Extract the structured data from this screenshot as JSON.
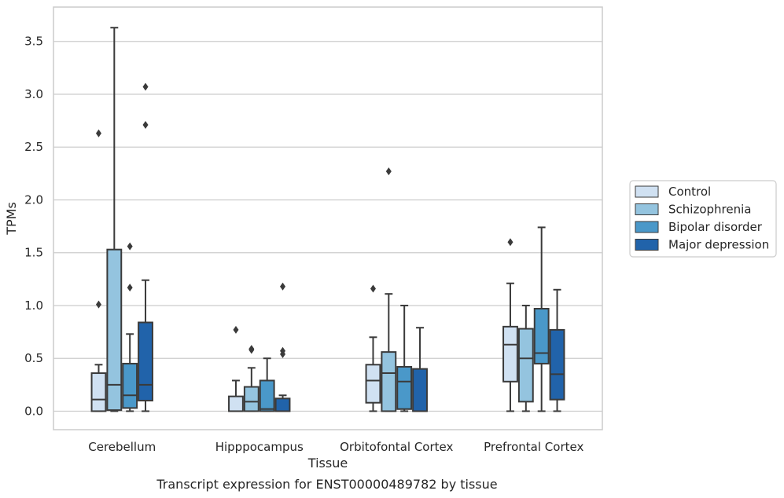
{
  "chart_data": {
    "type": "boxplot",
    "title": "Transcript expression for ENST00000489782 by tissue",
    "xlabel": "Tissue",
    "ylabel": "TPMs",
    "ylim": [
      -0.175,
      3.825
    ],
    "yticks": [
      0.0,
      0.5,
      1.0,
      1.5,
      2.0,
      2.5,
      3.0,
      3.5
    ],
    "ytick_labels": [
      "0.0",
      "0.5",
      "1.0",
      "1.5",
      "2.0",
      "2.5",
      "3.0",
      "3.5"
    ],
    "categories": [
      "Cerebellum",
      "Hipppocampus",
      "Orbitofontal Cortex",
      "Prefrontal Cortex"
    ],
    "grid": "horizontal",
    "legend_position": "right",
    "series": [
      {
        "name": "Control",
        "color": "#d0e1f2",
        "boxes": [
          {
            "whislo": 0.0,
            "q1": 0.0,
            "med": 0.11,
            "q3": 0.36,
            "whishi": 0.44,
            "fliers": [
              1.01,
              2.63
            ]
          },
          {
            "whislo": 0.0,
            "q1": 0.0,
            "med": 0.0,
            "q3": 0.14,
            "whishi": 0.29,
            "fliers": [
              0.77
            ]
          },
          {
            "whislo": 0.0,
            "q1": 0.08,
            "med": 0.29,
            "q3": 0.44,
            "whishi": 0.7,
            "fliers": [
              1.16
            ]
          },
          {
            "whislo": 0.0,
            "q1": 0.28,
            "med": 0.63,
            "q3": 0.8,
            "whishi": 1.21,
            "fliers": [
              1.6
            ]
          }
        ]
      },
      {
        "name": "Schizophrenia",
        "color": "#94c4df",
        "boxes": [
          {
            "whislo": 0.0,
            "q1": 0.01,
            "med": 0.25,
            "q3": 1.53,
            "whishi": 3.63,
            "fliers": []
          },
          {
            "whislo": 0.0,
            "q1": 0.0,
            "med": 0.09,
            "q3": 0.23,
            "whishi": 0.41,
            "fliers": [
              0.58,
              0.59
            ]
          },
          {
            "whislo": 0.0,
            "q1": 0.0,
            "med": 0.36,
            "q3": 0.56,
            "whishi": 1.11,
            "fliers": [
              2.27
            ]
          },
          {
            "whislo": 0.0,
            "q1": 0.09,
            "med": 0.5,
            "q3": 0.78,
            "whishi": 1.0,
            "fliers": []
          }
        ]
      },
      {
        "name": "Bipolar disorder",
        "color": "#4a98c9",
        "boxes": [
          {
            "whislo": 0.0,
            "q1": 0.03,
            "med": 0.15,
            "q3": 0.45,
            "whishi": 0.73,
            "fliers": [
              1.17,
              1.56
            ]
          },
          {
            "whislo": 0.0,
            "q1": 0.0,
            "med": 0.02,
            "q3": 0.29,
            "whishi": 0.5,
            "fliers": []
          },
          {
            "whislo": 0.0,
            "q1": 0.02,
            "med": 0.28,
            "q3": 0.42,
            "whishi": 1.0,
            "fliers": []
          },
          {
            "whislo": 0.0,
            "q1": 0.45,
            "med": 0.55,
            "q3": 0.97,
            "whishi": 1.74,
            "fliers": []
          }
        ]
      },
      {
        "name": "Major depression",
        "color": "#2163aa",
        "boxes": [
          {
            "whislo": 0.0,
            "q1": 0.1,
            "med": 0.25,
            "q3": 0.84,
            "whishi": 1.24,
            "fliers": [
              2.71,
              3.07
            ]
          },
          {
            "whislo": 0.0,
            "q1": 0.0,
            "med": 0.0,
            "q3": 0.12,
            "whishi": 0.15,
            "fliers": [
              0.54,
              0.57,
              1.18
            ]
          },
          {
            "whislo": 0.0,
            "q1": 0.0,
            "med": 0.0,
            "q3": 0.4,
            "whishi": 0.79,
            "fliers": []
          },
          {
            "whislo": 0.0,
            "q1": 0.11,
            "med": 0.35,
            "q3": 0.77,
            "whishi": 1.15,
            "fliers": []
          }
        ]
      }
    ]
  }
}
